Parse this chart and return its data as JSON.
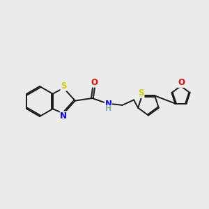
{
  "background_color": "#ebebeb",
  "bond_color": "#1a1a1a",
  "bond_width": 1.4,
  "atom_colors": {
    "S": "#cccc00",
    "N": "#0000ee",
    "O": "#ee0000",
    "C": "#1a1a1a"
  },
  "font_size": 8.5,
  "figsize": [
    3.0,
    3.0
  ],
  "dpi": 100
}
